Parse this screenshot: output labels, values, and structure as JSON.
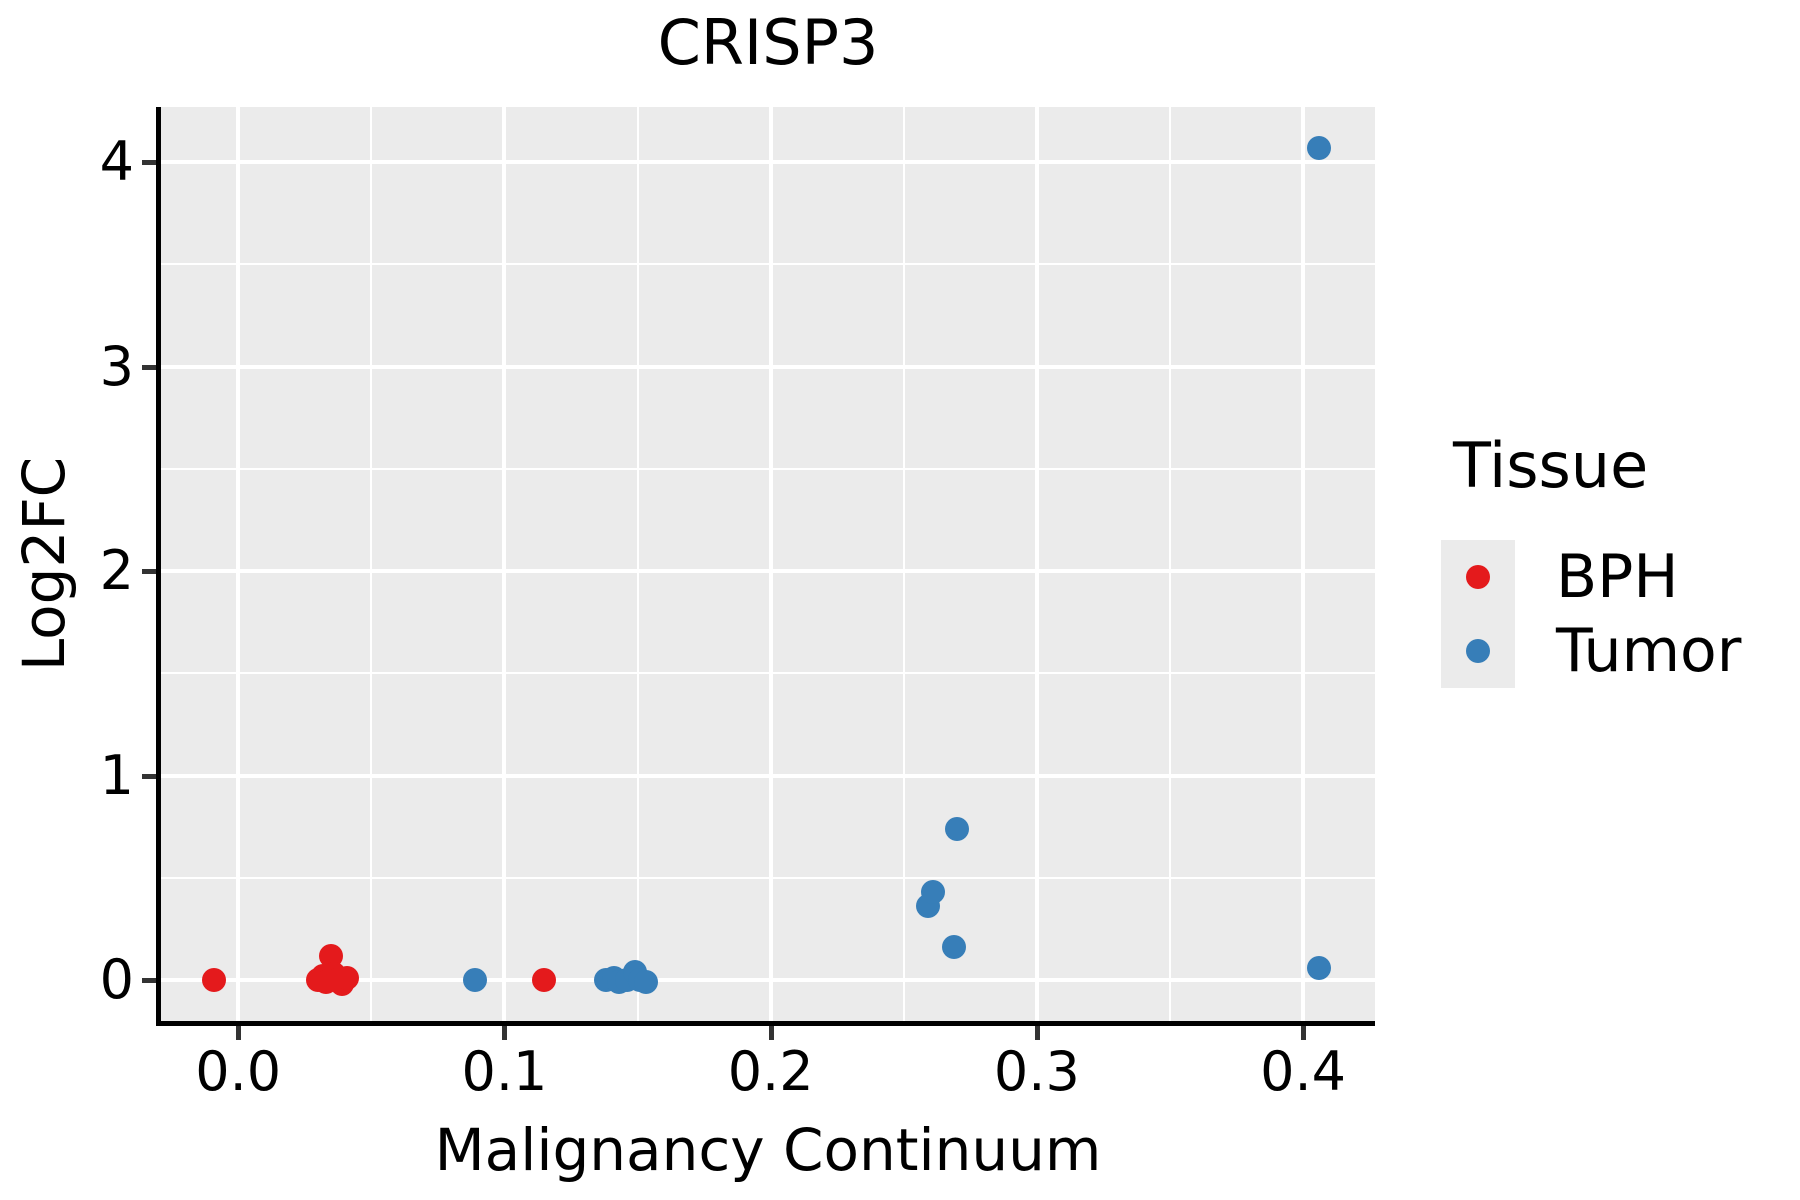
{
  "title": "CRISP3",
  "legend": {
    "title": "Tissue",
    "items": [
      {
        "label": "BPH",
        "color": "#E41A1C"
      },
      {
        "label": "Tumor",
        "color": "#377EB8"
      }
    ]
  },
  "colors": {
    "bph_red": "#E41A1C",
    "tumor_blue": "#377EB8",
    "panel_background": "#EBEBEB",
    "gridline": "#FFFFFF",
    "axis_line": "#000000",
    "tick_mark": "#333333"
  },
  "chart_data": {
    "type": "scatter",
    "title": "CRISP3",
    "xlabel": "Malignancy Continuum",
    "ylabel": "Log2FC",
    "xlim": [
      -0.029,
      0.427
    ],
    "ylim": [
      -0.2,
      4.27
    ],
    "grid": true,
    "legend_position": "right",
    "x_ticks": {
      "values": [
        0.0,
        0.1,
        0.2,
        0.3,
        0.4
      ],
      "labels": [
        "0.0",
        "0.1",
        "0.2",
        "0.3",
        "0.4"
      ]
    },
    "y_ticks": {
      "values": [
        0,
        1,
        2,
        3,
        4
      ],
      "labels": [
        "0",
        "1",
        "2",
        "3",
        "4"
      ]
    },
    "x_minor_ticks": [
      0.05,
      0.15,
      0.25,
      0.35
    ],
    "y_minor_ticks": [
      0.5,
      1.5,
      2.5,
      3.5
    ],
    "series": [
      {
        "name": "BPH",
        "color": "#E41A1C",
        "points": [
          [
            -0.009,
            0.0
          ],
          [
            0.03,
            0.0
          ],
          [
            0.032,
            0.02
          ],
          [
            0.033,
            -0.01
          ],
          [
            0.035,
            0.12
          ],
          [
            0.036,
            0.03
          ],
          [
            0.037,
            0.0
          ],
          [
            0.039,
            -0.02
          ],
          [
            0.041,
            0.01
          ],
          [
            0.115,
            0.0
          ]
        ]
      },
      {
        "name": "Tumor",
        "color": "#377EB8",
        "points": [
          [
            0.089,
            0.0
          ],
          [
            0.138,
            0.0
          ],
          [
            0.141,
            0.01
          ],
          [
            0.143,
            -0.01
          ],
          [
            0.146,
            0.0
          ],
          [
            0.149,
            0.04
          ],
          [
            0.151,
            0.0
          ],
          [
            0.153,
            -0.01
          ],
          [
            0.259,
            0.36
          ],
          [
            0.261,
            0.43
          ],
          [
            0.269,
            0.16
          ],
          [
            0.27,
            0.74
          ],
          [
            0.406,
            4.07
          ],
          [
            0.406,
            0.06
          ]
        ]
      }
    ]
  }
}
